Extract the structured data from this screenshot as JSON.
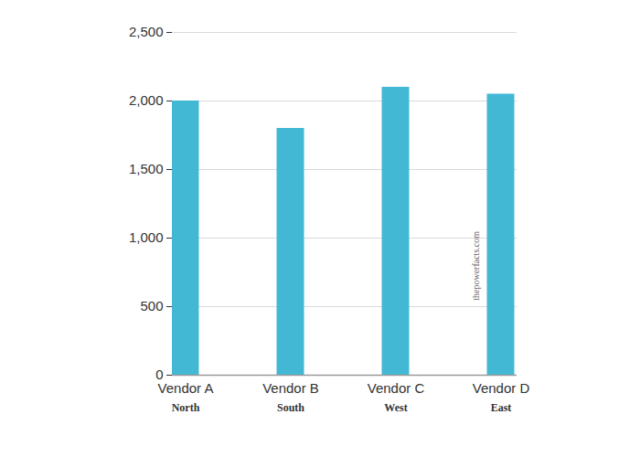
{
  "chart_data": {
    "type": "bar",
    "categories": [
      "Vendor A",
      "Vendor B",
      "Vendor C",
      "Vendor D"
    ],
    "regions": [
      "North",
      "South",
      "West",
      "East"
    ],
    "values": [
      2000,
      1800,
      2100,
      2050
    ],
    "color": "#42b8d5",
    "ylim": [
      0,
      2500
    ],
    "yticks": [
      0,
      500,
      {
        "value": 1000,
        "label": "1,000"
      },
      {
        "value": 1500,
        "label": "1,500"
      },
      {
        "value": 2000,
        "label": "2,000"
      },
      {
        "value": 2500,
        "label": "2,500"
      }
    ],
    "grid": true,
    "annotations": [
      "thepowerfacts.com"
    ]
  }
}
